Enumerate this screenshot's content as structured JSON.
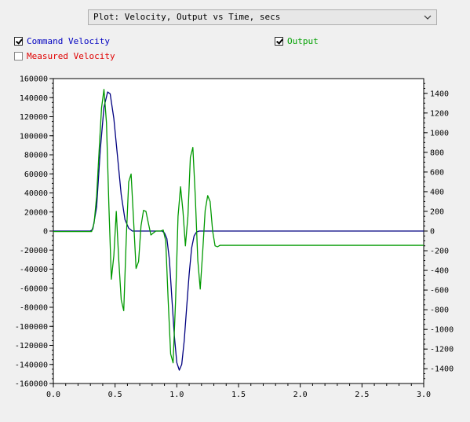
{
  "plot_selector": {
    "value": "Plot: Velocity, Output vs Time, secs"
  },
  "checkboxes": {
    "command_velocity": {
      "label": "Command Velocity",
      "checked": true,
      "color": "#0000c0"
    },
    "measured_velocity": {
      "label": "Measured Velocity",
      "checked": false,
      "color": "#e00000"
    },
    "output": {
      "label": "Output",
      "checked": true,
      "color": "#00a000"
    }
  },
  "chart_data": {
    "type": "line",
    "x_ticks": [
      "0.0",
      "0.5",
      "1.0",
      "1.5",
      "2.0",
      "2.5",
      "3.0"
    ],
    "xlim": [
      0,
      3.0
    ],
    "left_ticks": [
      "160000",
      "140000",
      "120000",
      "100000",
      "80000",
      "60000",
      "40000",
      "20000",
      "0",
      "-20000",
      "-40000",
      "-60000",
      "-80000",
      "-100000",
      "-120000",
      "-140000",
      "-160000"
    ],
    "ylim_left": [
      -160000,
      160000
    ],
    "right_ticks": [
      "1400",
      "1200",
      "1000",
      "800",
      "600",
      "400",
      "200",
      "0",
      "-200",
      "-400",
      "-600",
      "-800",
      "-1000",
      "-1200",
      "-1400"
    ],
    "ylim_right": [
      -1550,
      1550
    ],
    "series": [
      {
        "name": "Command Velocity",
        "axis": "left",
        "color": "#000080",
        "x": [
          0,
          0.3,
          0.32,
          0.35,
          0.38,
          0.41,
          0.44,
          0.46,
          0.49,
          0.52,
          0.55,
          0.58,
          0.61,
          0.64,
          0.7,
          0.8,
          0.88,
          0.9,
          0.92,
          0.94,
          0.96,
          0.98,
          1.0,
          1.02,
          1.04,
          1.06,
          1.08,
          1.1,
          1.12,
          1.14,
          1.16,
          1.18,
          1.2,
          1.3,
          1.5,
          2.0,
          2.5,
          3.0
        ],
        "y": [
          0,
          0,
          2000,
          25000,
          85000,
          130000,
          146000,
          144000,
          118000,
          78000,
          38000,
          12000,
          3000,
          0,
          0,
          0,
          0,
          -2000,
          -8000,
          -30000,
          -70000,
          -110000,
          -138000,
          -146000,
          -140000,
          -115000,
          -80000,
          -45000,
          -18000,
          -5000,
          -1000,
          0,
          0,
          0,
          0,
          0,
          0,
          0
        ]
      },
      {
        "name": "Output",
        "axis": "right",
        "color": "#009900",
        "x": [
          0,
          0.31,
          0.33,
          0.35,
          0.37,
          0.39,
          0.41,
          0.43,
          0.45,
          0.47,
          0.49,
          0.51,
          0.53,
          0.55,
          0.57,
          0.59,
          0.61,
          0.63,
          0.65,
          0.67,
          0.69,
          0.71,
          0.73,
          0.75,
          0.77,
          0.79,
          0.81,
          0.83,
          0.85,
          0.87,
          0.89,
          0.91,
          0.93,
          0.95,
          0.97,
          0.99,
          1.01,
          1.03,
          1.05,
          1.07,
          1.09,
          1.11,
          1.13,
          1.15,
          1.17,
          1.19,
          1.21,
          1.23,
          1.25,
          1.27,
          1.29,
          1.31,
          1.33,
          1.35,
          1.37,
          1.5,
          2.0,
          2.5,
          3.0
        ],
        "y": [
          -5,
          -5,
          80,
          350,
          800,
          1250,
          1440,
          1100,
          250,
          -490,
          -250,
          200,
          -300,
          -700,
          -810,
          -100,
          500,
          580,
          100,
          -380,
          -310,
          50,
          210,
          200,
          80,
          -40,
          -20,
          0,
          0,
          0,
          10,
          -100,
          -700,
          -1250,
          -1340,
          -700,
          150,
          450,
          200,
          -150,
          150,
          750,
          850,
          350,
          -300,
          -590,
          -200,
          210,
          360,
          300,
          0,
          -150,
          -160,
          -145,
          -145,
          -145,
          -145,
          -145,
          -145
        ]
      }
    ]
  }
}
